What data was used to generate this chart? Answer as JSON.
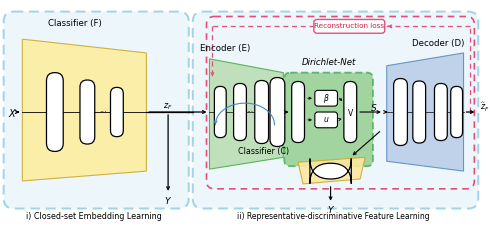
{
  "bg_color": "#ffffff",
  "dashed_blue": "#5ab4d4",
  "dashed_pink": "#e0507a",
  "dashed_green": "#44aa55",
  "yellow_fill": "#fceea0",
  "yellow_fill2": "#fce8a0",
  "green_fill": "#b8ddb0",
  "green_fill2": "#88cc88",
  "blue_fill": "#b8cce8",
  "node_fill": "#ffffff",
  "node_edge": "#222222",
  "arrow_color": "#222222",
  "blue_arrow": "#4488cc",
  "text_color": "#222222",
  "pink_text": "#cc2244",
  "title1": "i) Closed-set Embedding Learning",
  "title2": "ii) Representative-discriminative Feature Learning",
  "label_F": "Classifier (F)",
  "label_E": "Encoder (E)",
  "label_D": "Decoder (D)",
  "label_DN": "Dirichlet-Net",
  "label_C": "Classifier (C)",
  "label_RL": "Reconstruction loss",
  "figsize": [
    4.9,
    2.27
  ],
  "dpi": 100
}
